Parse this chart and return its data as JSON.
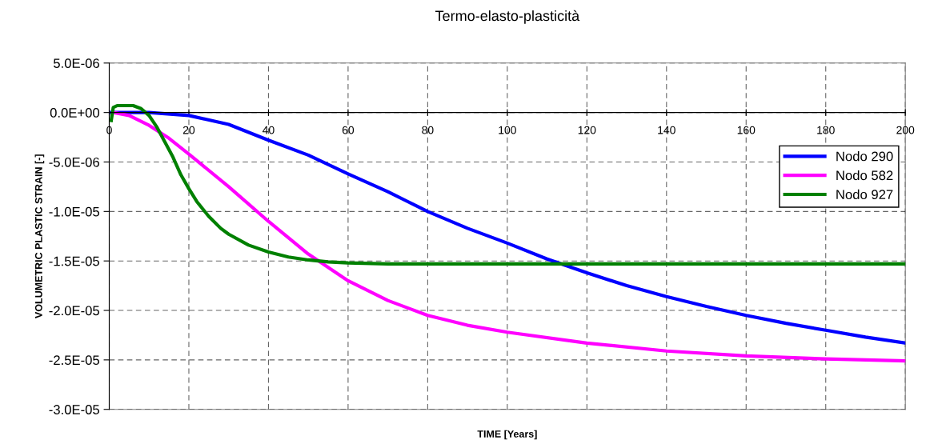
{
  "chart_data": {
    "type": "line",
    "title": "Termo-elasto-plasticità",
    "xlabel": "TIME [Years]",
    "ylabel": "VOLUMETRIC PLASTIC STRAIN [-]",
    "xlim": [
      0,
      200
    ],
    "xticks": [
      0,
      20,
      40,
      60,
      80,
      100,
      120,
      140,
      160,
      180,
      200
    ],
    "ylim": [
      -3e-05,
      5e-06
    ],
    "yticks": [
      {
        "value": 5e-06,
        "label": "5.0E-06"
      },
      {
        "value": 0,
        "label": "0.0E+00"
      },
      {
        "value": -5e-06,
        "label": "-5.0E-06"
      },
      {
        "value": -1e-05,
        "label": "-1.0E-05"
      },
      {
        "value": -1.5e-05,
        "label": "-1.5E-05"
      },
      {
        "value": -2e-05,
        "label": "-2.0E-05"
      },
      {
        "value": -2.5e-05,
        "label": "-2.5E-05"
      },
      {
        "value": -3e-05,
        "label": "-3.0E-05"
      }
    ],
    "grid": true,
    "legend": "right",
    "marker": "none",
    "line_style": "solid",
    "series": [
      {
        "name": "Nodo 290",
        "color": "#0000ff",
        "x": [
          0,
          10,
          20,
          30,
          40,
          50,
          60,
          70,
          80,
          90,
          100,
          110,
          120,
          130,
          140,
          150,
          160,
          170,
          180,
          190,
          200
        ],
        "values": [
          0,
          0,
          -3e-07,
          -1.2e-06,
          -2.8e-06,
          -4.3e-06,
          -6.2e-06,
          -8e-06,
          -1e-05,
          -1.17e-05,
          -1.32e-05,
          -1.48e-05,
          -1.62e-05,
          -1.75e-05,
          -1.86e-05,
          -1.96e-05,
          -2.05e-05,
          -2.13e-05,
          -2.2e-05,
          -2.27e-05,
          -2.33e-05
        ]
      },
      {
        "name": "Nodo 582",
        "color": "#ff00ff",
        "x": [
          1,
          5,
          10,
          15,
          20,
          30,
          40,
          50,
          60,
          70,
          80,
          90,
          100,
          120,
          140,
          160,
          180,
          200
        ],
        "values": [
          0,
          -3e-07,
          -1.3e-06,
          -2.6e-06,
          -4.2e-06,
          -7.5e-06,
          -1.1e-05,
          -1.43e-05,
          -1.7e-05,
          -1.9e-05,
          -2.05e-05,
          -2.15e-05,
          -2.22e-05,
          -2.33e-05,
          -2.41e-05,
          -2.46e-05,
          -2.49e-05,
          -2.51e-05
        ]
      },
      {
        "name": "Nodo 927",
        "color": "#008000",
        "x": [
          0.5,
          1,
          2,
          6,
          8,
          10,
          12,
          14,
          16,
          18,
          20,
          22,
          25,
          28,
          30,
          35,
          40,
          45,
          50,
          55,
          60,
          70,
          100,
          200
        ],
        "values": [
          -8e-07,
          5e-07,
          7e-07,
          7e-07,
          4e-07,
          -3e-07,
          -1.5e-06,
          -3e-06,
          -4.5e-06,
          -6.3e-06,
          -7.7e-06,
          -9e-06,
          -1.05e-05,
          -1.17e-05,
          -1.23e-05,
          -1.34e-05,
          -1.41e-05,
          -1.46e-05,
          -1.49e-05,
          -1.51e-05,
          -1.52e-05,
          -1.53e-05,
          -1.53e-05,
          -1.53e-05
        ]
      }
    ]
  }
}
